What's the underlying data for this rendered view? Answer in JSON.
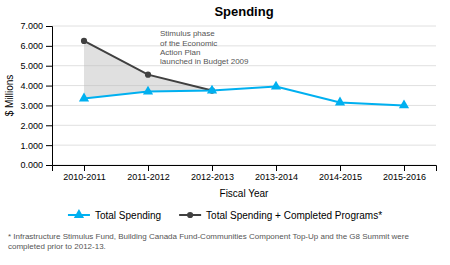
{
  "chart_data": {
    "type": "line",
    "title": "Spending",
    "xlabel": "Fiscal Year",
    "ylabel": "$ Millions",
    "categories": [
      "2010-2011",
      "2011-2012",
      "2012-2013",
      "2013-2014",
      "2014-2015",
      "2015-2016"
    ],
    "series": [
      {
        "name": "Total Spending",
        "color": "#00b0f0",
        "marker": "triangle",
        "values": [
          3.35,
          3.7,
          3.75,
          3.95,
          3.15,
          3.0
        ]
      },
      {
        "name": "Total Spending + Completed Programs*",
        "color": "#404040",
        "marker": "circle",
        "values": [
          6.25,
          4.55,
          3.75,
          null,
          null,
          null
        ]
      }
    ],
    "ylim": [
      0,
      7.0
    ],
    "yticks": [
      {
        "value": 0,
        "label": "0.000"
      },
      {
        "value": 1,
        "label": "1.000"
      },
      {
        "value": 2,
        "label": "2.000"
      },
      {
        "value": 3,
        "label": "3.000"
      },
      {
        "value": 4,
        "label": "4.000"
      },
      {
        "value": 5,
        "label": "5.000"
      },
      {
        "value": 6,
        "label": "6.000"
      },
      {
        "value": 7,
        "label": "7.000"
      }
    ],
    "grid": true,
    "legend": "bottom",
    "annotations": [
      "Stimulus phase\nof the Economic\nAction Plan\nlaunched in Budget 2009",
      "* Infrastructure Stimulus Fund, Building Canada Fund-Communities Component Top-Up and the G8 Summit were completed prior to 2012-13."
    ]
  }
}
